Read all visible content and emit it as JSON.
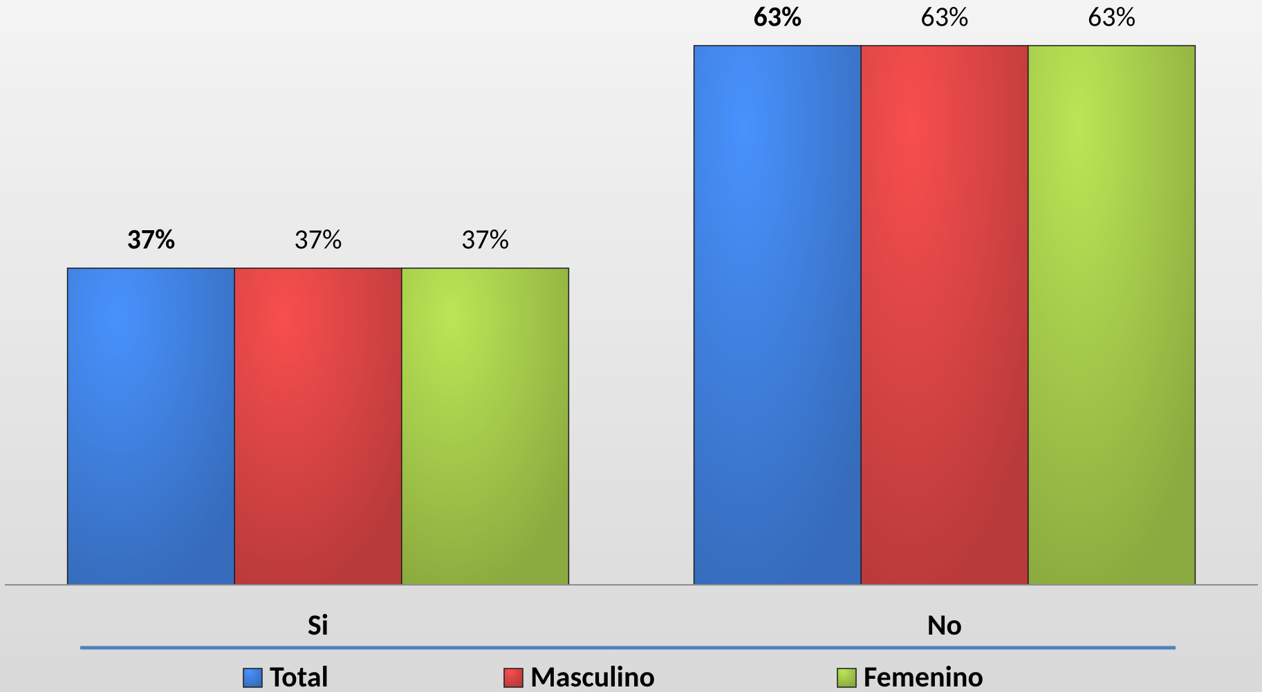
{
  "chart_data": {
    "type": "bar",
    "categories": [
      "Si",
      "No"
    ],
    "series": [
      {
        "name": "Total",
        "color": "#3f7fdc",
        "values": [
          37,
          63
        ],
        "value_labels": [
          "37%",
          "63%"
        ]
      },
      {
        "name": "Masculino",
        "color": "#d84444",
        "values": [
          37,
          63
        ],
        "value_labels": [
          "37%",
          "63%"
        ]
      },
      {
        "name": "Femenino",
        "color": "#a3c84a",
        "values": [
          37,
          63
        ],
        "value_labels": [
          "37%",
          "63%"
        ]
      }
    ],
    "legend": "bottom"
  }
}
